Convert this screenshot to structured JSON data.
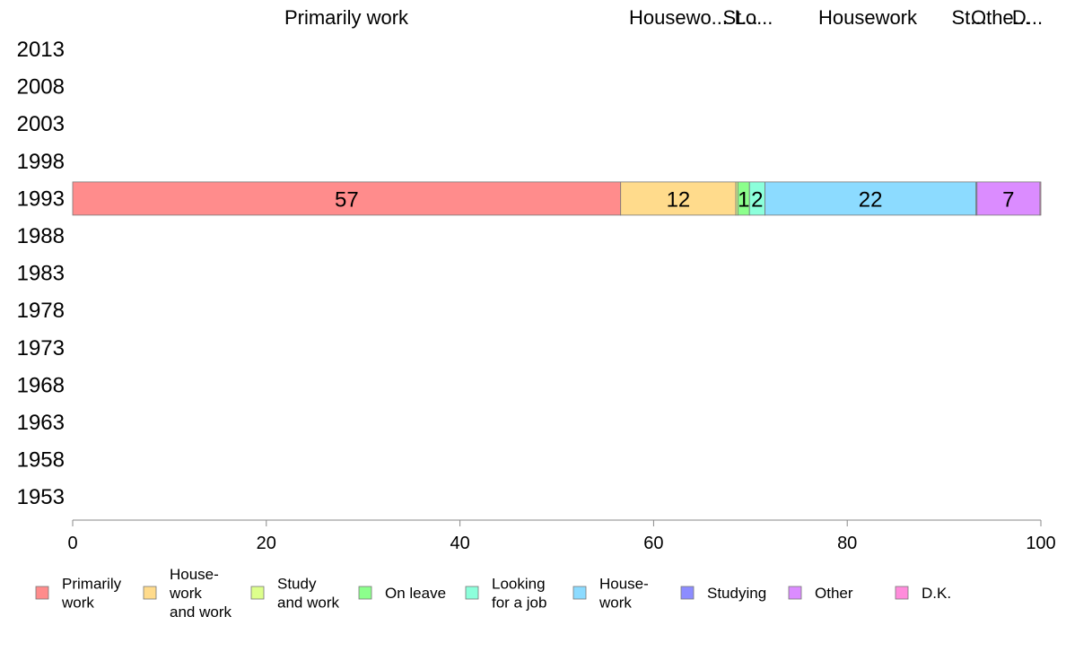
{
  "chart_data": {
    "type": "bar",
    "orientation": "horizontal-stacked",
    "categories": [
      "2013",
      "2008",
      "2003",
      "1998",
      "1993",
      "1988",
      "1983",
      "1978",
      "1973",
      "1968",
      "1963",
      "1958",
      "1953"
    ],
    "xlim": [
      0,
      100
    ],
    "xticks": [
      "0",
      "20",
      "40",
      "60",
      "80",
      "100"
    ],
    "top_labels": [
      "Primarily work",
      "Housewo...",
      "St...",
      "Lo...",
      "Housework",
      "St...",
      "Othe...",
      "D..."
    ],
    "series": [
      {
        "name": "Primarily work",
        "legend_lines": [
          "Primarily",
          "work"
        ],
        "color": "#FF8C8C",
        "values": {
          "1993": 56.6
        },
        "labels": {
          "1993": "57"
        }
      },
      {
        "name": "House-work and work",
        "legend_lines": [
          "House-",
          "work",
          "and work"
        ],
        "color": "#FFDB8C",
        "values": {
          "1993": 11.9
        },
        "labels": {
          "1993": "12"
        }
      },
      {
        "name": "Study and work",
        "legend_lines": [
          "Study",
          "and work"
        ],
        "color": "#DDFF8C",
        "values": {
          "1993": 0.2
        },
        "labels": {}
      },
      {
        "name": "On leave",
        "legend_lines": [
          "On leave"
        ],
        "color": "#8CFF8C",
        "values": {
          "1993": 1.2
        },
        "labels": {
          "1993": "1"
        }
      },
      {
        "name": "Looking for a job",
        "legend_lines": [
          "Looking",
          "for a job"
        ],
        "color": "#8CFFDB",
        "values": {
          "1993": 1.6
        },
        "labels": {
          "1993": "2"
        }
      },
      {
        "name": "House-work",
        "legend_lines": [
          "House-",
          "work"
        ],
        "color": "#8CDBFF",
        "values": {
          "1993": 21.8
        },
        "labels": {
          "1993": "22"
        }
      },
      {
        "name": "Studying",
        "legend_lines": [
          "Studying"
        ],
        "color": "#8C8CFF",
        "values": {
          "1993": 0.1
        },
        "labels": {}
      },
      {
        "name": "Other",
        "legend_lines": [
          "Other"
        ],
        "color": "#DB8CFF",
        "values": {
          "1993": 6.5
        },
        "labels": {
          "1993": "7"
        }
      },
      {
        "name": "D.K.",
        "legend_lines": [
          "D.K."
        ],
        "color": "#FF8CDB",
        "values": {
          "1993": 0.1
        },
        "labels": {}
      }
    ],
    "grid": false,
    "legend": "bottom"
  }
}
